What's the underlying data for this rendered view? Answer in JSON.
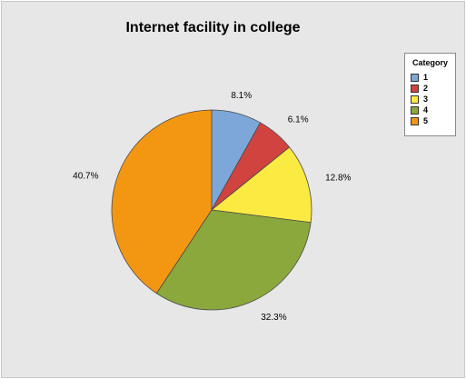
{
  "chart_data": {
    "type": "pie",
    "title": "Internet facility in college",
    "legend_title": "Category",
    "legend_position": "top-right",
    "categories": [
      "1",
      "2",
      "3",
      "4",
      "5"
    ],
    "values": [
      8.1,
      6.1,
      12.8,
      32.3,
      40.7
    ],
    "value_labels": [
      "8.1%",
      "6.1%",
      "12.8%",
      "32.3%",
      "40.7%"
    ],
    "colors": [
      "#7da7d9",
      "#d0433f",
      "#fbea41",
      "#8ba83c",
      "#f39713"
    ]
  }
}
